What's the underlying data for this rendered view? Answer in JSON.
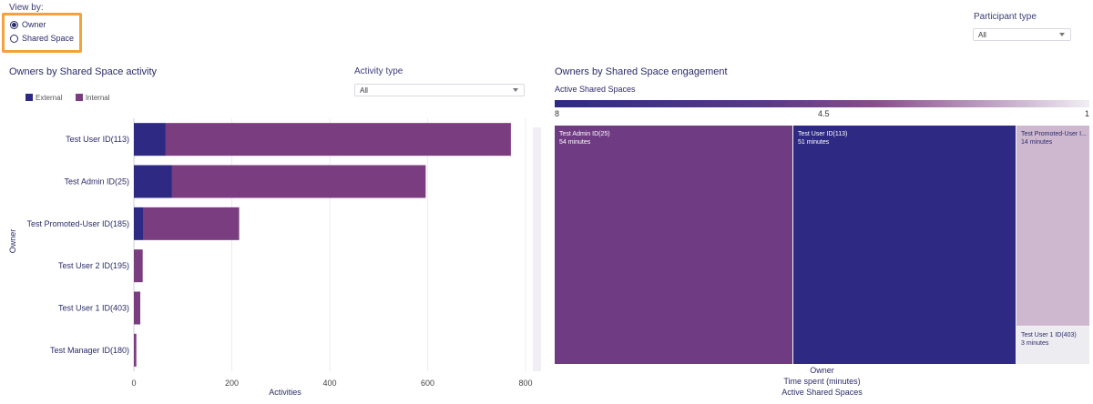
{
  "view_by": {
    "label": "View by:",
    "options": [
      {
        "label": "Owner",
        "selected": true
      },
      {
        "label": "Shared Space",
        "selected": false
      }
    ]
  },
  "participant_type": {
    "label": "Participant type",
    "value": "All"
  },
  "activity_type": {
    "label": "Activity type",
    "value": "All"
  },
  "colors": {
    "external": "#2e2a84",
    "internal": "#7a3d80",
    "accent": "#f5a23c"
  },
  "chart_data": [
    {
      "type": "bar",
      "orientation": "horizontal",
      "stacked": true,
      "title": "Owners by Shared Space activity",
      "xlabel": "Activities",
      "ylabel": "Owner",
      "xlim": [
        0,
        800
      ],
      "xticks": [
        "0",
        "200",
        "400",
        "600",
        "800"
      ],
      "legend_position": "top-left",
      "categories": [
        "Test User ID(113)",
        "Test Admin ID(25)",
        "Test Promoted-User ID(185)",
        "Test User 2 ID(195)",
        "Test User 1 ID(403)",
        "Test Manager ID(180)"
      ],
      "series": [
        {
          "name": "External",
          "values": [
            65,
            78,
            20,
            0,
            0,
            0
          ]
        },
        {
          "name": "Internal",
          "values": [
            705,
            518,
            195,
            18,
            13,
            5
          ]
        }
      ]
    },
    {
      "type": "heatmap",
      "subtype": "treemap",
      "title": "Owners by Shared Space engagement",
      "color_label": "Active Shared Spaces",
      "color_scale": {
        "min": 1,
        "mid": 4.5,
        "max": 8,
        "min_label": "1",
        "mid_label": "4.5",
        "max_label": "8"
      },
      "size_label": "Time spent (minutes)",
      "group_label": "Owner",
      "color_by_label": "Active Shared Spaces",
      "cells": [
        {
          "label": "Test Admin ID(25)",
          "value_text": "54 minutes",
          "minutes": 54,
          "color": "#6f3b82"
        },
        {
          "label": "Test User ID(113)",
          "value_text": "51 minutes",
          "minutes": 51,
          "color": "#2e2a84"
        },
        {
          "label": "Test Promoted-User I...",
          "value_text": "14 minutes",
          "minutes": 14,
          "color": "#cdb8cf"
        },
        {
          "label": "Test User 1 ID(403)",
          "value_text": "3 minutes",
          "minutes": 3,
          "color": "#ececf1"
        }
      ]
    }
  ]
}
